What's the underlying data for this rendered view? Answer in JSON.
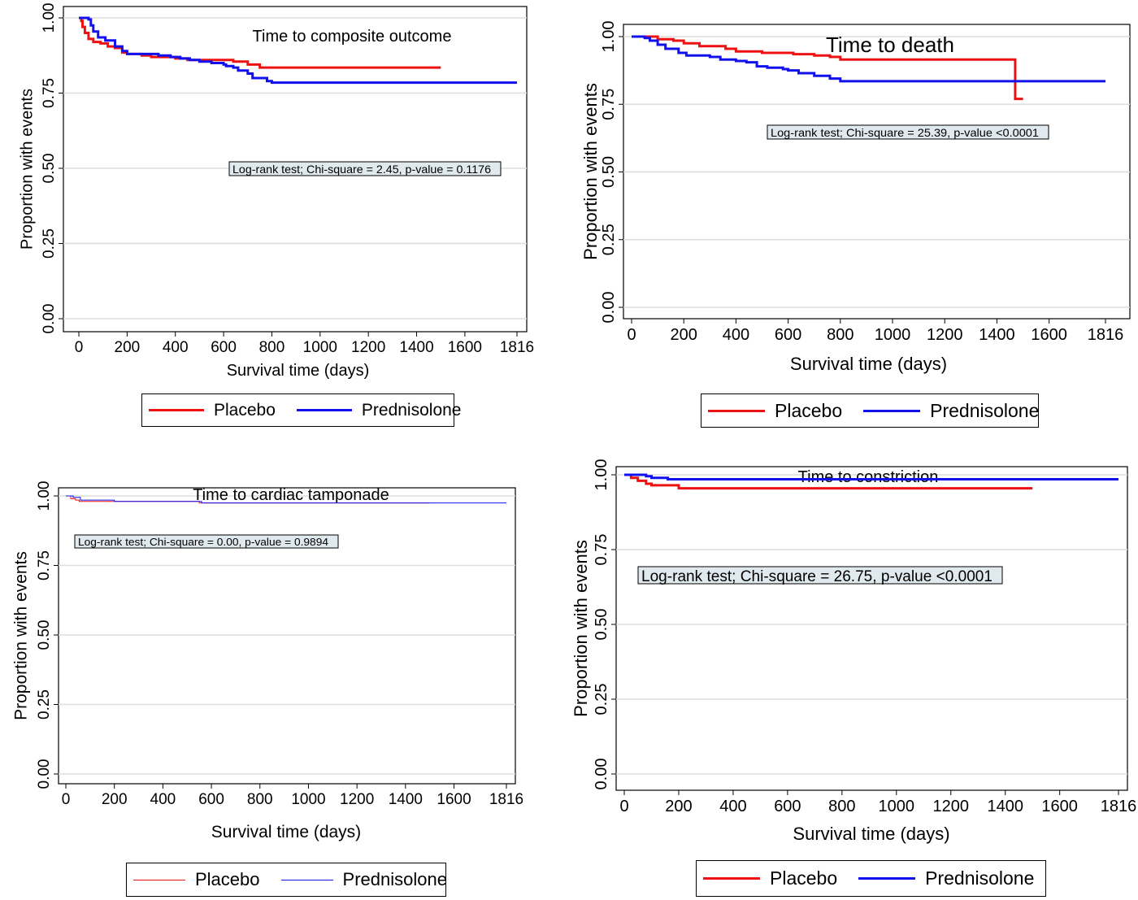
{
  "colors": {
    "placebo": "#ee1111",
    "prednisolone": "#1111ee",
    "annotation_bg": "#dfe9ee",
    "grid": "#dddddd"
  },
  "legend": {
    "placebo": "Placebo",
    "prednisolone": "Prednisolone"
  },
  "chart_data": [
    {
      "type": "line",
      "step": true,
      "title": "Time to composite outcome",
      "xlabel": "Survival time (days)",
      "ylabel": "Proportion with events",
      "xticks": [
        "0",
        "200",
        "400",
        "600",
        "800",
        "1000",
        "1200",
        "1400",
        "1600",
        "1816"
      ],
      "xtick_values": [
        0,
        200,
        400,
        600,
        800,
        1000,
        1200,
        1400,
        1600,
        1816
      ],
      "yticks": [
        "0.00",
        "0.25",
        "0.50",
        "0.75",
        "1.00"
      ],
      "ytick_values": [
        0,
        0.25,
        0.5,
        0.75,
        1.0
      ],
      "xlim": [
        0,
        1816
      ],
      "ylim": [
        0,
        1
      ],
      "grid": true,
      "legend_position": "below",
      "annotation": "Log-rank test; Chi-square = 2.45, p-value =  0.1176",
      "series": [
        {
          "name": "Placebo",
          "color": "placebo",
          "points": [
            [
              0,
              1.0
            ],
            [
              10,
              0.99
            ],
            [
              15,
              0.97
            ],
            [
              25,
              0.95
            ],
            [
              40,
              0.93
            ],
            [
              60,
              0.92
            ],
            [
              90,
              0.915
            ],
            [
              120,
              0.905
            ],
            [
              150,
              0.9
            ],
            [
              180,
              0.885
            ],
            [
              200,
              0.88
            ],
            [
              260,
              0.875
            ],
            [
              300,
              0.87
            ],
            [
              400,
              0.865
            ],
            [
              450,
              0.86
            ],
            [
              640,
              0.855
            ],
            [
              700,
              0.845
            ],
            [
              750,
              0.835
            ],
            [
              1500,
              0.835
            ]
          ]
        },
        {
          "name": "Prednisolone",
          "color": "prednisolone",
          "points": [
            [
              0,
              1.0
            ],
            [
              40,
              0.995
            ],
            [
              50,
              0.975
            ],
            [
              60,
              0.955
            ],
            [
              80,
              0.935
            ],
            [
              110,
              0.925
            ],
            [
              150,
              0.905
            ],
            [
              180,
              0.89
            ],
            [
              200,
              0.88
            ],
            [
              300,
              0.88
            ],
            [
              330,
              0.875
            ],
            [
              380,
              0.87
            ],
            [
              420,
              0.865
            ],
            [
              460,
              0.86
            ],
            [
              500,
              0.855
            ],
            [
              550,
              0.85
            ],
            [
              600,
              0.845
            ],
            [
              610,
              0.84
            ],
            [
              640,
              0.835
            ],
            [
              660,
              0.825
            ],
            [
              700,
              0.815
            ],
            [
              720,
              0.8
            ],
            [
              780,
              0.79
            ],
            [
              800,
              0.785
            ],
            [
              1816,
              0.785
            ]
          ]
        }
      ]
    },
    {
      "type": "line",
      "step": true,
      "title": "Time to death",
      "xlabel": "Survival time (days)",
      "ylabel": "Proportion with events",
      "xticks": [
        "0",
        "200",
        "400",
        "600",
        "800",
        "1000",
        "1200",
        "1400",
        "1600",
        "1816"
      ],
      "xtick_values": [
        0,
        200,
        400,
        600,
        800,
        1000,
        1200,
        1400,
        1600,
        1816
      ],
      "yticks": [
        "0.00",
        "0.25",
        "0.50",
        "0.75",
        "1.00"
      ],
      "ytick_values": [
        0,
        0.25,
        0.5,
        0.75,
        1.0
      ],
      "xlim": [
        0,
        1816
      ],
      "ylim": [
        0,
        1
      ],
      "grid": true,
      "legend_position": "below",
      "annotation": "Log-rank test; Chi-square = 25.39, p-value <0.0001",
      "series": [
        {
          "name": "Placebo",
          "color": "placebo",
          "points": [
            [
              0,
              1.0
            ],
            [
              60,
              1.0
            ],
            [
              100,
              0.99
            ],
            [
              160,
              0.985
            ],
            [
              200,
              0.975
            ],
            [
              260,
              0.965
            ],
            [
              360,
              0.955
            ],
            [
              400,
              0.945
            ],
            [
              500,
              0.94
            ],
            [
              620,
              0.935
            ],
            [
              700,
              0.93
            ],
            [
              760,
              0.925
            ],
            [
              800,
              0.915
            ],
            [
              1470,
              0.915
            ],
            [
              1470,
              0.77
            ],
            [
              1500,
              0.77
            ]
          ]
        },
        {
          "name": "Prednisolone",
          "color": "prednisolone",
          "points": [
            [
              0,
              1.0
            ],
            [
              50,
              0.995
            ],
            [
              70,
              0.985
            ],
            [
              100,
              0.97
            ],
            [
              130,
              0.955
            ],
            [
              180,
              0.94
            ],
            [
              210,
              0.93
            ],
            [
              300,
              0.925
            ],
            [
              340,
              0.915
            ],
            [
              400,
              0.91
            ],
            [
              440,
              0.905
            ],
            [
              480,
              0.89
            ],
            [
              520,
              0.885
            ],
            [
              580,
              0.88
            ],
            [
              600,
              0.875
            ],
            [
              640,
              0.865
            ],
            [
              700,
              0.855
            ],
            [
              760,
              0.845
            ],
            [
              800,
              0.835
            ],
            [
              1816,
              0.835
            ]
          ]
        }
      ]
    },
    {
      "type": "line",
      "step": true,
      "title": "Time to cardiac tamponade",
      "xlabel": "Survival time (days)",
      "ylabel": "Proportion with events",
      "xticks": [
        "0",
        "200",
        "400",
        "600",
        "800",
        "1000",
        "1200",
        "1400",
        "1600",
        "1816"
      ],
      "xtick_values": [
        0,
        200,
        400,
        600,
        800,
        1000,
        1200,
        1400,
        1600,
        1816
      ],
      "yticks": [
        "0.00",
        "0.25",
        "0.50",
        "0.75",
        "1.00"
      ],
      "ytick_values": [
        0,
        0.25,
        0.5,
        0.75,
        1.0
      ],
      "xlim": [
        0,
        1816
      ],
      "ylim": [
        0,
        1
      ],
      "grid": true,
      "legend_position": "below",
      "annotation": "Log-rank test; Chi-square = 0.00, p-value = 0.9894",
      "series": [
        {
          "name": "Placebo",
          "color": "placebo",
          "points": [
            [
              0,
              1.0
            ],
            [
              20,
              0.99
            ],
            [
              40,
              0.985
            ],
            [
              55,
              0.98
            ],
            [
              200,
              0.98
            ],
            [
              550,
              0.975
            ],
            [
              1500,
              0.975
            ]
          ]
        },
        {
          "name": "Prednisolone",
          "color": "prednisolone",
          "points": [
            [
              0,
              1.0
            ],
            [
              30,
              0.995
            ],
            [
              60,
              0.985
            ],
            [
              200,
              0.98
            ],
            [
              560,
              0.975
            ],
            [
              1500,
              0.975
            ],
            [
              1816,
              0.975
            ]
          ]
        }
      ]
    },
    {
      "type": "line",
      "step": true,
      "title": "Time to constriction",
      "xlabel": "Survival time (days)",
      "ylabel": "Proportion with events",
      "xticks": [
        "0",
        "200",
        "400",
        "600",
        "800",
        "1000",
        "1200",
        "1400",
        "1600",
        "1816"
      ],
      "xtick_values": [
        0,
        200,
        400,
        600,
        800,
        1000,
        1200,
        1400,
        1600,
        1816
      ],
      "yticks": [
        "0.00",
        "0.25",
        "0.50",
        "0.75",
        "1.00"
      ],
      "ytick_values": [
        0,
        0.25,
        0.5,
        0.75,
        1.0
      ],
      "xlim": [
        0,
        1816
      ],
      "ylim": [
        0,
        1
      ],
      "grid": true,
      "legend_position": "below",
      "annotation": "Log-rank test; Chi-square = 26.75, p-value <0.0001",
      "series": [
        {
          "name": "Placebo",
          "color": "placebo",
          "points": [
            [
              0,
              1.0
            ],
            [
              25,
              0.99
            ],
            [
              50,
              0.98
            ],
            [
              80,
              0.97
            ],
            [
              100,
              0.965
            ],
            [
              160,
              0.965
            ],
            [
              200,
              0.955
            ],
            [
              1500,
              0.955
            ]
          ]
        },
        {
          "name": "Prednisolone",
          "color": "prednisolone",
          "points": [
            [
              0,
              1.0
            ],
            [
              80,
              0.995
            ],
            [
              100,
              0.99
            ],
            [
              140,
              0.99
            ],
            [
              160,
              0.985
            ],
            [
              1816,
              0.985
            ]
          ]
        }
      ]
    }
  ]
}
